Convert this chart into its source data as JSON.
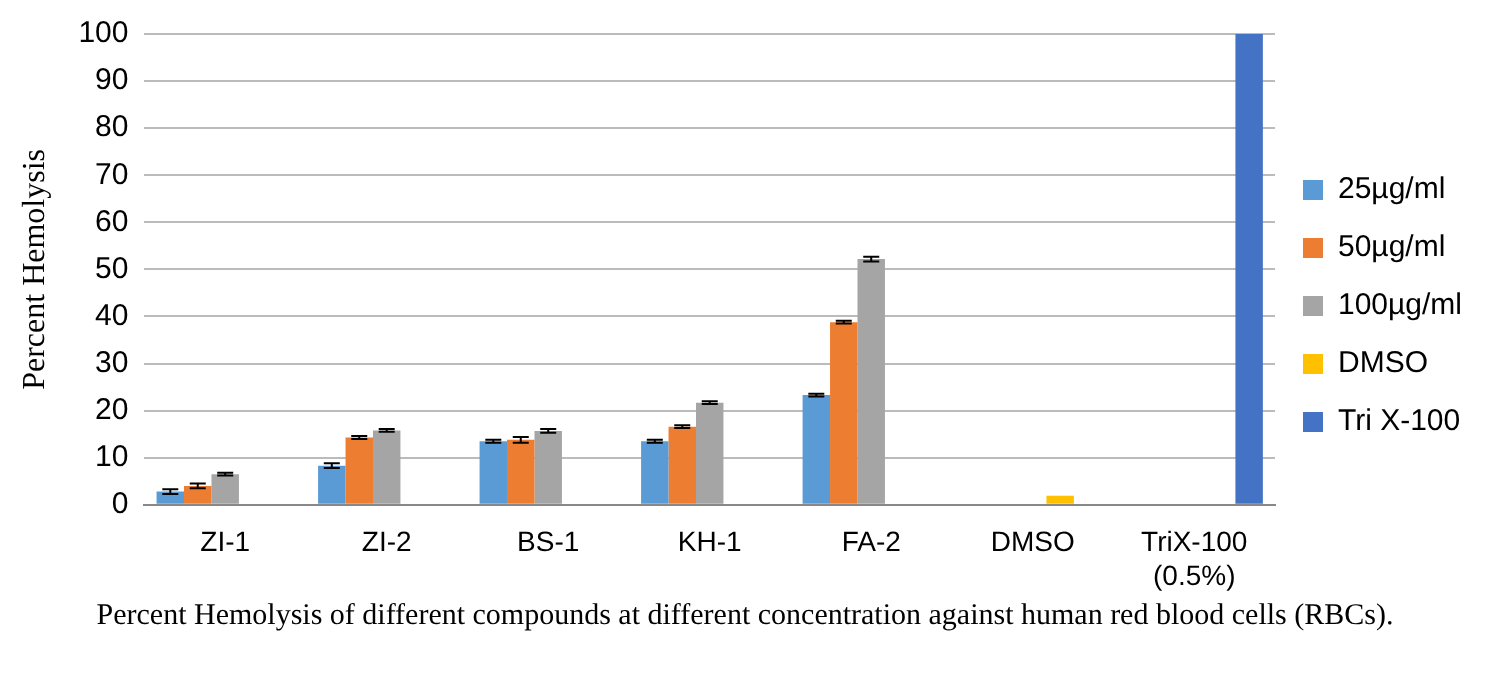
{
  "chart_data": {
    "type": "bar",
    "categories": [
      "ZI-1",
      "ZI-2",
      "BS-1",
      "KH-1",
      "FA-2",
      "DMSO",
      "TriX-100 (0.5%)"
    ],
    "ylabel": "Percent Hemolysis",
    "series": [
      {
        "name": "25µg/ml",
        "color": "#5b9bd5",
        "values": [
          2.8,
          8.3,
          13.5,
          13.5,
          23.3,
          null,
          null
        ],
        "errors": [
          0.5,
          0.5,
          0.3,
          0.3,
          0.3,
          null,
          null
        ]
      },
      {
        "name": "50µg/ml",
        "color": "#ed7d31",
        "values": [
          4,
          14.3,
          13.8,
          16.6,
          38.8,
          null,
          null
        ],
        "errors": [
          0.5,
          0.3,
          0.6,
          0.3,
          0.3,
          null,
          null
        ]
      },
      {
        "name": "100µg/ml",
        "color": "#a5a5a5",
        "values": [
          6.5,
          15.8,
          15.7,
          21.7,
          52.2,
          null,
          null
        ],
        "errors": [
          0.3,
          0.3,
          0.4,
          0.3,
          0.5,
          null,
          null
        ]
      },
      {
        "name": "DMSO",
        "color": "#ffc000",
        "values": [
          null,
          null,
          null,
          null,
          null,
          1.9,
          null
        ]
      },
      {
        "name": "Tri X-100",
        "color": "#4472c4",
        "values": [
          null,
          null,
          null,
          null,
          null,
          null,
          100
        ]
      }
    ],
    "ylim": [
      0,
      100
    ],
    "yticks": [
      0,
      10,
      20,
      30,
      40,
      50,
      60,
      70,
      80,
      90,
      100
    ],
    "grid": "y",
    "legend": "right",
    "annotations": [
      "Percent Hemolysis of different compounds at different concentration against human red blood cells (RBCs)."
    ]
  }
}
